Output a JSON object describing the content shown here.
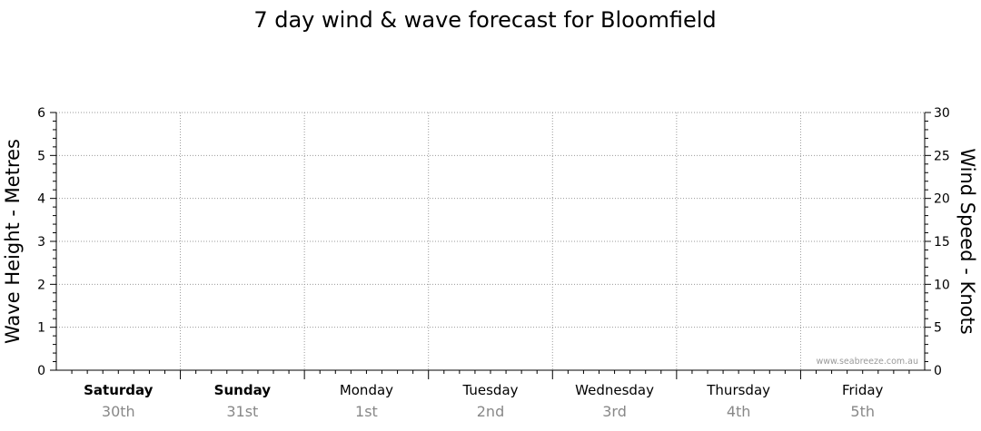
{
  "chart_data": {
    "type": "line",
    "title": "7 day wind & wave forecast for Bloomfield",
    "ylabel": "Wave Height - Metres",
    "ylabel_right": "Wind Speed - Knots",
    "ylim": [
      0,
      6
    ],
    "y_ticks": [
      "0",
      "1",
      "2",
      "3",
      "4",
      "5",
      "6"
    ],
    "ylim_right": [
      0,
      30
    ],
    "y_ticks_right": [
      "0",
      "5",
      "10",
      "15",
      "20",
      "25",
      "30"
    ],
    "grid": true,
    "days": [
      {
        "day": "Saturday",
        "date": "30th",
        "bold": true
      },
      {
        "day": "Sunday",
        "date": "31st",
        "bold": true
      },
      {
        "day": "Monday",
        "date": "1st",
        "bold": false
      },
      {
        "day": "Tuesday",
        "date": "2nd",
        "bold": false
      },
      {
        "day": "Wednesday",
        "date": "3rd",
        "bold": false
      },
      {
        "day": "Thursday",
        "date": "4th",
        "bold": false
      },
      {
        "day": "Friday",
        "date": "5th",
        "bold": false
      }
    ],
    "series": [],
    "watermark": "www.seabreeze.com.au"
  }
}
